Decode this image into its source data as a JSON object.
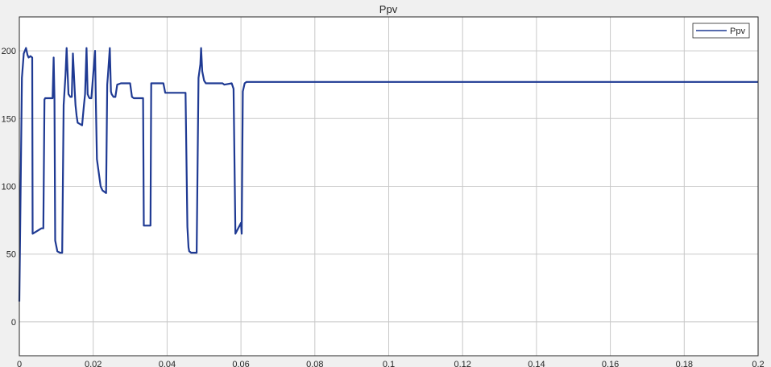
{
  "chart_data": {
    "type": "line",
    "title": "Ppv",
    "xlabel": "",
    "ylabel": "",
    "xlim": [
      0,
      0.2
    ],
    "ylim": [
      -25,
      225
    ],
    "xticks": [
      0,
      0.02,
      0.04,
      0.06,
      0.08,
      0.1,
      0.12,
      0.14,
      0.16,
      0.18,
      0.2
    ],
    "xtick_labels": [
      "0",
      "0.02",
      "0.04",
      "0.06",
      "0.08",
      "0.1",
      "0.12",
      "0.14",
      "0.16",
      "0.18",
      "0.2"
    ],
    "yticks": [
      0,
      50,
      100,
      150,
      200
    ],
    "ytick_labels": [
      "0",
      "50",
      "100",
      "150",
      "200"
    ],
    "grid": true,
    "legend_position": "top-right",
    "series": [
      {
        "name": "Ppv",
        "color": "#1f3a93",
        "x": [
          0,
          0.0007,
          0.0012,
          0.0018,
          0.0022,
          0.0025,
          0.003,
          0.0035,
          0.0036,
          0.006,
          0.0065,
          0.0068,
          0.007,
          0.0075,
          0.009,
          0.0093,
          0.0095,
          0.0097,
          0.0103,
          0.011,
          0.0116,
          0.012,
          0.0125,
          0.0128,
          0.0133,
          0.0138,
          0.0142,
          0.0145,
          0.015,
          0.0152,
          0.0155,
          0.0158,
          0.017,
          0.0175,
          0.0178,
          0.0182,
          0.0185,
          0.0188,
          0.019,
          0.0195,
          0.0205,
          0.0207,
          0.021,
          0.022,
          0.0225,
          0.0235,
          0.0238,
          0.024,
          0.0245,
          0.0248,
          0.025,
          0.0255,
          0.026,
          0.0265,
          0.0275,
          0.0278,
          0.0285,
          0.03,
          0.0305,
          0.031,
          0.0325,
          0.033,
          0.0335,
          0.0337,
          0.0355,
          0.0357,
          0.0365,
          0.0375,
          0.039,
          0.0395,
          0.04,
          0.042,
          0.0425,
          0.045,
          0.0455,
          0.0458,
          0.046,
          0.0465,
          0.0475,
          0.048,
          0.0485,
          0.049,
          0.0492,
          0.0495,
          0.05,
          0.0505,
          0.052,
          0.0525,
          0.055,
          0.0555,
          0.0575,
          0.058,
          0.0585,
          0.06,
          0.0602,
          0.0605,
          0.061,
          0.0615,
          0.065,
          0.1,
          0.15,
          0.2
        ],
        "y": [
          15,
          180,
          198,
          202,
          197,
          195,
          196,
          195,
          65,
          69,
          69,
          164,
          165,
          165,
          165,
          195,
          165,
          60,
          52,
          51,
          51,
          160,
          182,
          202,
          168,
          166,
          166,
          198,
          170,
          160,
          152,
          147,
          145,
          160,
          168,
          202,
          168,
          166,
          165,
          165,
          200,
          165,
          120,
          100,
          97,
          95,
          175,
          182,
          202,
          170,
          168,
          166,
          166,
          175,
          176,
          176,
          176,
          176,
          166,
          165,
          165,
          165,
          165,
          71,
          71,
          176,
          176,
          176,
          176,
          169,
          169,
          169,
          169,
          169,
          70,
          55,
          52,
          51,
          51,
          51,
          180,
          190,
          202,
          185,
          178,
          176,
          176,
          176,
          176,
          175,
          176,
          172,
          65,
          73,
          65,
          170,
          176,
          177,
          177,
          177,
          177,
          177
        ]
      }
    ]
  }
}
